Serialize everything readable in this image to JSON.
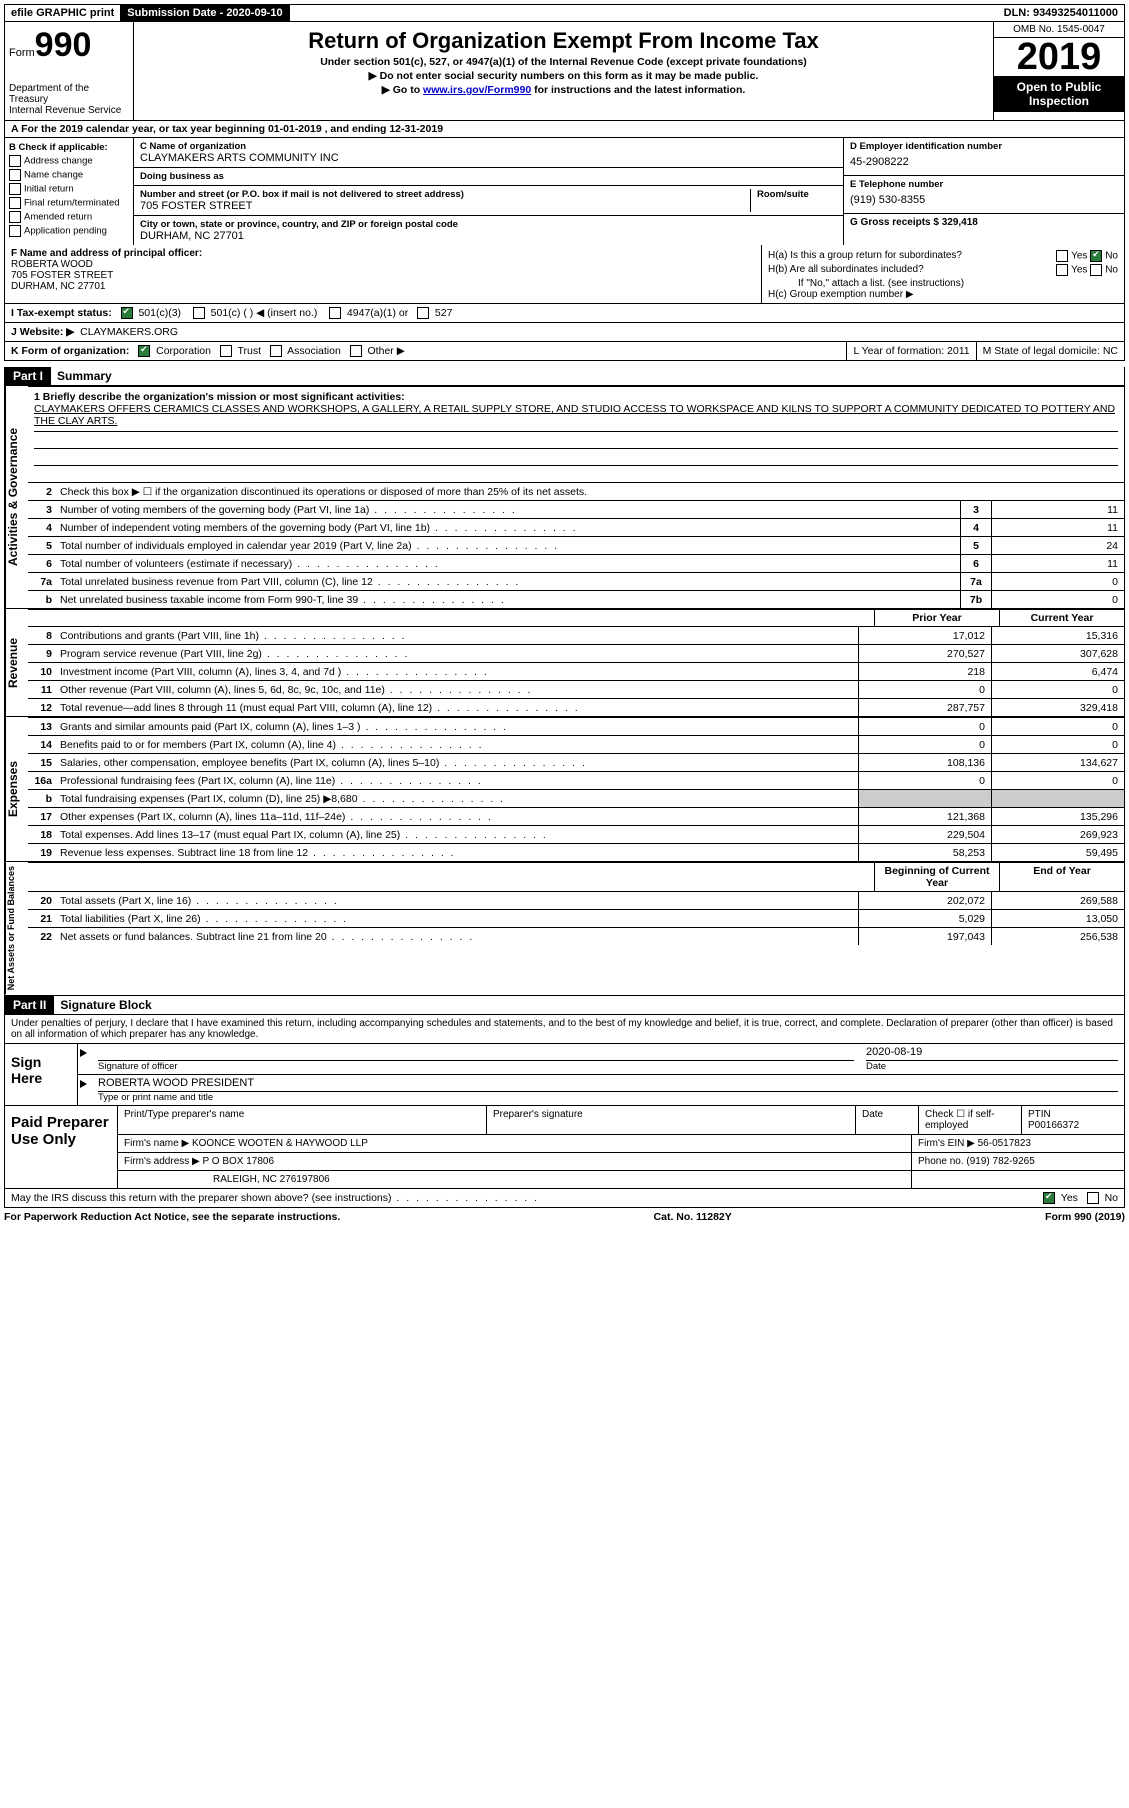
{
  "topbar": {
    "efile": "efile GRAPHIC print",
    "submission_label": "Submission Date - 2020-09-10",
    "dln_label": "DLN: 93493254011000"
  },
  "header": {
    "form_word": "Form",
    "form_num": "990",
    "dept": "Department of the Treasury\nInternal Revenue Service",
    "title": "Return of Organization Exempt From Income Tax",
    "sub1": "Under section 501(c), 527, or 4947(a)(1) of the Internal Revenue Code (except private foundations)",
    "sub2": "▶ Do not enter social security numbers on this form as it may be made public.",
    "sub3_pre": "▶ Go to ",
    "sub3_link": "www.irs.gov/Form990",
    "sub3_post": " for instructions and the latest information.",
    "omb": "OMB No. 1545-0047",
    "year": "2019",
    "open": "Open to Public Inspection"
  },
  "row_a": "A   For the 2019 calendar year, or tax year beginning 01-01-2019    , and ending 12-31-2019",
  "col_b": {
    "label": "B Check if applicable:",
    "items": [
      "Address change",
      "Name change",
      "Initial return",
      "Final return/terminated",
      "Amended return",
      "Application pending"
    ]
  },
  "col_c": {
    "name_label": "C Name of organization",
    "name": "CLAYMAKERS ARTS COMMUNITY INC",
    "dba_label": "Doing business as",
    "dba": "",
    "street_label": "Number and street (or P.O. box if mail is not delivered to street address)",
    "room_label": "Room/suite",
    "street": "705 FOSTER STREET",
    "city_label": "City or town, state or province, country, and ZIP or foreign postal code",
    "city": "DURHAM, NC  27701"
  },
  "col_d": {
    "ein_label": "D Employer identification number",
    "ein": "45-2908222",
    "phone_label": "E Telephone number",
    "phone": "(919) 530-8355",
    "gross_label": "G Gross receipts $ 329,418"
  },
  "row_f": {
    "label": "F  Name and address of principal officer:",
    "name": "ROBERTA WOOD",
    "street": "705 FOSTER STREET",
    "city": "DURHAM, NC  27701"
  },
  "row_h": {
    "a": "H(a)  Is this a group return for subordinates?",
    "b": "H(b)  Are all subordinates included?",
    "b_note": "If \"No,\" attach a list. (see instructions)",
    "c": "H(c)  Group exemption number ▶"
  },
  "row_i": {
    "label": "I   Tax-exempt status:",
    "o1": "501(c)(3)",
    "o2": "501(c) (   ) ◀ (insert no.)",
    "o3": "4947(a)(1) or",
    "o4": "527"
  },
  "row_j": {
    "label": "J   Website: ▶",
    "val": "CLAYMAKERS.ORG"
  },
  "row_k": {
    "label": "K Form of organization:",
    "o1": "Corporation",
    "o2": "Trust",
    "o3": "Association",
    "o4": "Other ▶",
    "l": "L Year of formation: 2011",
    "m": "M State of legal domicile: NC"
  },
  "part1": {
    "num": "Part I",
    "title": "Summary"
  },
  "mission": {
    "label": "1  Briefly describe the organization's mission or most significant activities:",
    "text": "CLAYMAKERS OFFERS CERAMICS CLASSES AND WORKSHOPS, A GALLERY, A RETAIL SUPPLY STORE, AND STUDIO ACCESS TO WORKSPACE AND KILNS TO SUPPORT A COMMUNITY DEDICATED TO POTTERY AND THE CLAY ARTS."
  },
  "gov_lines": [
    {
      "n": "2",
      "d": "Check this box ▶ ☐ if the organization discontinued its operations or disposed of more than 25% of its net assets.",
      "box": "",
      "v": ""
    },
    {
      "n": "3",
      "d": "Number of voting members of the governing body (Part VI, line 1a)",
      "box": "3",
      "v": "11"
    },
    {
      "n": "4",
      "d": "Number of independent voting members of the governing body (Part VI, line 1b)",
      "box": "4",
      "v": "11"
    },
    {
      "n": "5",
      "d": "Total number of individuals employed in calendar year 2019 (Part V, line 2a)",
      "box": "5",
      "v": "24"
    },
    {
      "n": "6",
      "d": "Total number of volunteers (estimate if necessary)",
      "box": "6",
      "v": "11"
    },
    {
      "n": "7a",
      "d": "Total unrelated business revenue from Part VIII, column (C), line 12",
      "box": "7a",
      "v": "0"
    },
    {
      "n": "b",
      "d": "Net unrelated business taxable income from Form 990-T, line 39",
      "box": "7b",
      "v": "0"
    }
  ],
  "col_headers": {
    "prior": "Prior Year",
    "current": "Current Year"
  },
  "revenue_lines": [
    {
      "n": "8",
      "d": "Contributions and grants (Part VIII, line 1h)",
      "p": "17,012",
      "c": "15,316"
    },
    {
      "n": "9",
      "d": "Program service revenue (Part VIII, line 2g)",
      "p": "270,527",
      "c": "307,628"
    },
    {
      "n": "10",
      "d": "Investment income (Part VIII, column (A), lines 3, 4, and 7d )",
      "p": "218",
      "c": "6,474"
    },
    {
      "n": "11",
      "d": "Other revenue (Part VIII, column (A), lines 5, 6d, 8c, 9c, 10c, and 11e)",
      "p": "0",
      "c": "0"
    },
    {
      "n": "12",
      "d": "Total revenue—add lines 8 through 11 (must equal Part VIII, column (A), line 12)",
      "p": "287,757",
      "c": "329,418"
    }
  ],
  "expense_lines": [
    {
      "n": "13",
      "d": "Grants and similar amounts paid (Part IX, column (A), lines 1–3 )",
      "p": "0",
      "c": "0"
    },
    {
      "n": "14",
      "d": "Benefits paid to or for members (Part IX, column (A), line 4)",
      "p": "0",
      "c": "0"
    },
    {
      "n": "15",
      "d": "Salaries, other compensation, employee benefits (Part IX, column (A), lines 5–10)",
      "p": "108,136",
      "c": "134,627"
    },
    {
      "n": "16a",
      "d": "Professional fundraising fees (Part IX, column (A), line 11e)",
      "p": "0",
      "c": "0"
    },
    {
      "n": "b",
      "d": "Total fundraising expenses (Part IX, column (D), line 25) ▶8,680",
      "p": "SHADE",
      "c": "SHADE"
    },
    {
      "n": "17",
      "d": "Other expenses (Part IX, column (A), lines 11a–11d, 11f–24e)",
      "p": "121,368",
      "c": "135,296"
    },
    {
      "n": "18",
      "d": "Total expenses. Add lines 13–17 (must equal Part IX, column (A), line 25)",
      "p": "229,504",
      "c": "269,923"
    },
    {
      "n": "19",
      "d": "Revenue less expenses. Subtract line 18 from line 12",
      "p": "58,253",
      "c": "59,495"
    }
  ],
  "na_headers": {
    "begin": "Beginning of Current Year",
    "end": "End of Year"
  },
  "na_lines": [
    {
      "n": "20",
      "d": "Total assets (Part X, line 16)",
      "p": "202,072",
      "c": "269,588"
    },
    {
      "n": "21",
      "d": "Total liabilities (Part X, line 26)",
      "p": "5,029",
      "c": "13,050"
    },
    {
      "n": "22",
      "d": "Net assets or fund balances. Subtract line 21 from line 20",
      "p": "197,043",
      "c": "256,538"
    }
  ],
  "part2": {
    "num": "Part II",
    "title": "Signature Block"
  },
  "penalties": "Under penalties of perjury, I declare that I have examined this return, including accompanying schedules and statements, and to the best of my knowledge and belief, it is true, correct, and complete. Declaration of preparer (other than officer) is based on all information of which preparer has any knowledge.",
  "sign": {
    "left": "Sign Here",
    "sig_label": "Signature of officer",
    "date_label": "Date",
    "date": "2020-08-19",
    "name": "ROBERTA WOOD PRESIDENT",
    "name_label": "Type or print name and title"
  },
  "preparer": {
    "left": "Paid Preparer Use Only",
    "h1": "Print/Type preparer's name",
    "h2": "Preparer's signature",
    "h3": "Date",
    "h4a": "Check ☐ if self-employed",
    "h4b": "PTIN",
    "ptin": "P00166372",
    "firm_label": "Firm's name    ▶",
    "firm": "KOONCE WOOTEN & HAYWOOD LLP",
    "ein_label": "Firm's EIN ▶",
    "ein": "56-0517823",
    "addr_label": "Firm's address ▶",
    "addr1": "P O BOX 17806",
    "addr2": "RALEIGH, NC  276197806",
    "phone_label": "Phone no.",
    "phone": "(919) 782-9265"
  },
  "footer": {
    "discuss": "May the IRS discuss this return with the preparer shown above? (see instructions)",
    "paperwork": "For Paperwork Reduction Act Notice, see the separate instructions.",
    "cat": "Cat. No. 11282Y",
    "formno": "Form 990 (2019)"
  },
  "side_labels": {
    "gov": "Activities & Governance",
    "rev": "Revenue",
    "exp": "Expenses",
    "na": "Net Assets or Fund Balances"
  }
}
